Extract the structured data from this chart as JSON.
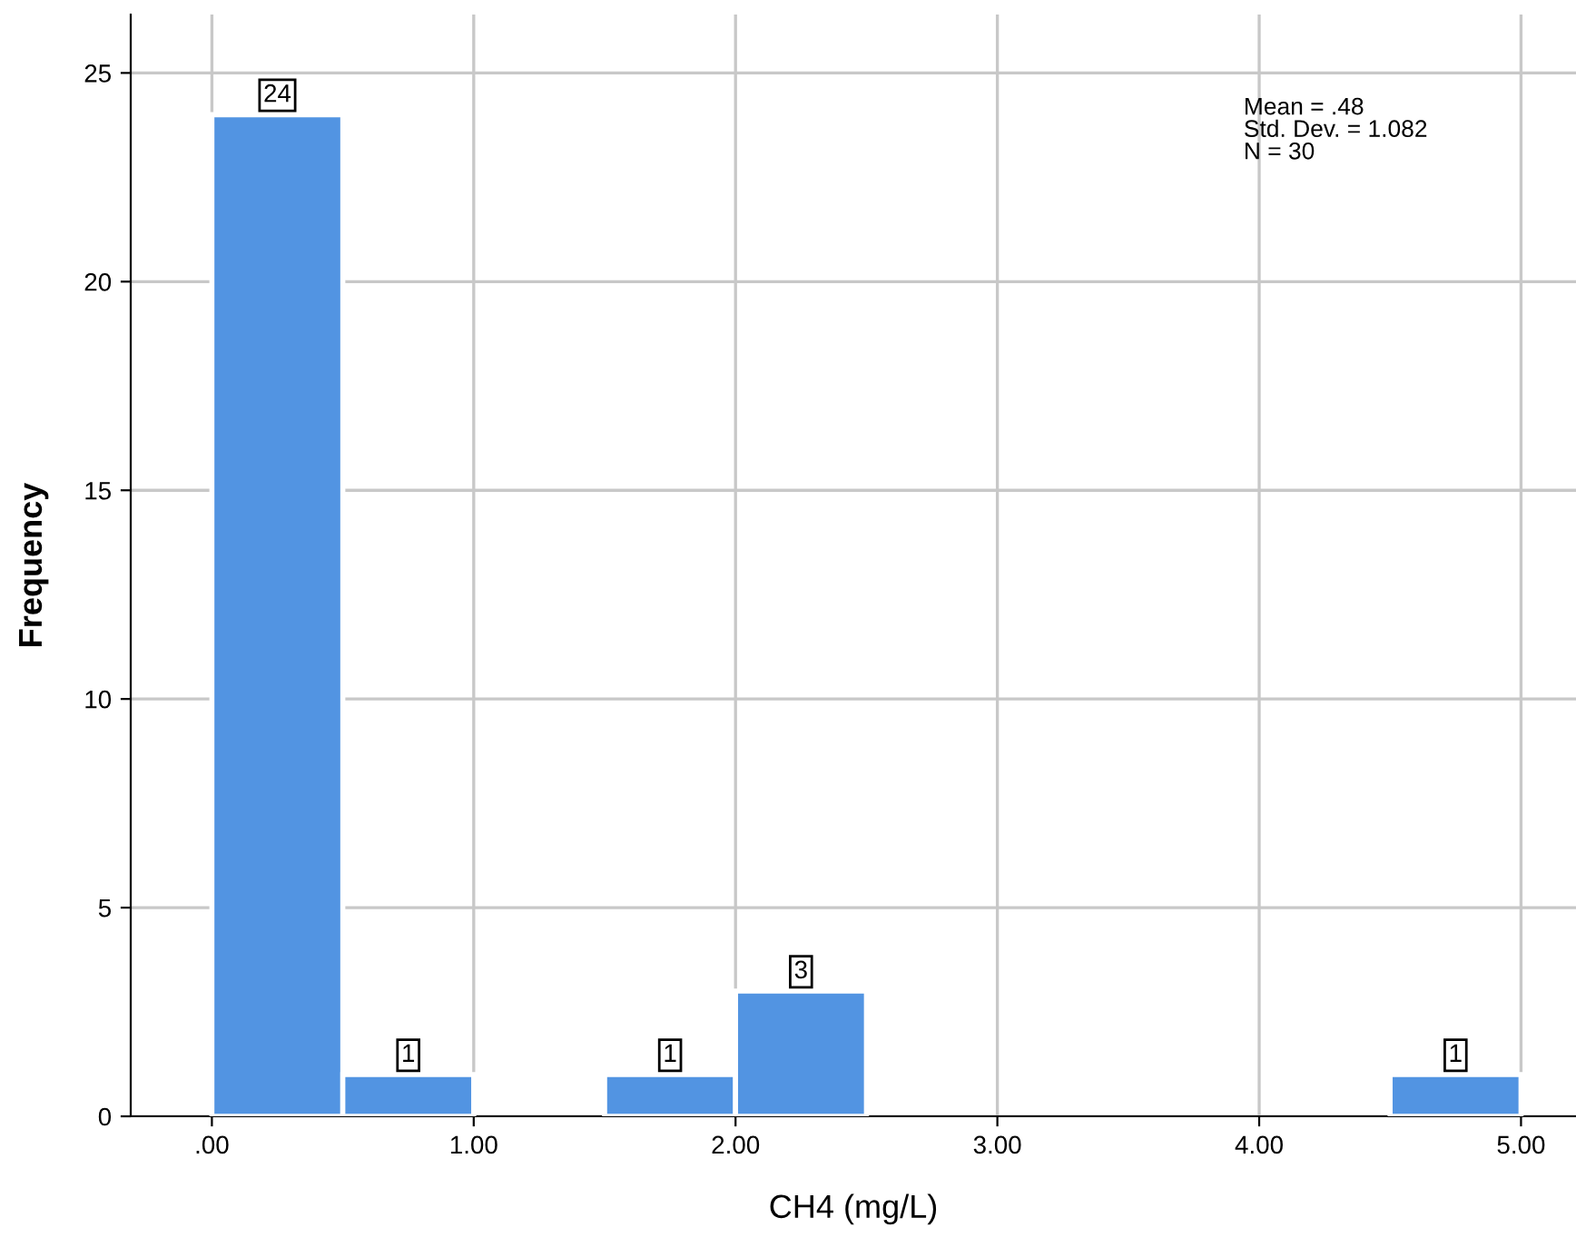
{
  "chart_data": {
    "type": "histogram",
    "xlabel": "CH4 (mg/L)",
    "ylabel": "Frequency",
    "bins": [
      0,
      0.5,
      1.0,
      1.5,
      2.0,
      2.5,
      3.0,
      3.5,
      4.0,
      4.5,
      5.0
    ],
    "values": [
      24,
      1,
      0,
      1,
      3,
      0,
      0,
      0,
      0,
      1
    ],
    "value_labels": [
      "24",
      "1",
      null,
      "1",
      "3",
      null,
      null,
      null,
      null,
      "1"
    ],
    "color": "#5294e2",
    "xlim": [
      -0.31,
      5.21
    ],
    "ylim": [
      0,
      26.4
    ],
    "xticks": [
      {
        "value": 0,
        "label": ".00"
      },
      {
        "value": 1,
        "label": "1.00"
      },
      {
        "value": 2,
        "label": "2.00"
      },
      {
        "value": 3,
        "label": "3.00"
      },
      {
        "value": 4,
        "label": "4.00"
      },
      {
        "value": 5,
        "label": "5.00"
      }
    ],
    "yticks": [
      0,
      5,
      10,
      15,
      20,
      25
    ],
    "grid": true,
    "annotations": [
      "Mean = .48",
      "Std. Dev. = 1.082",
      "N = 30"
    ]
  }
}
